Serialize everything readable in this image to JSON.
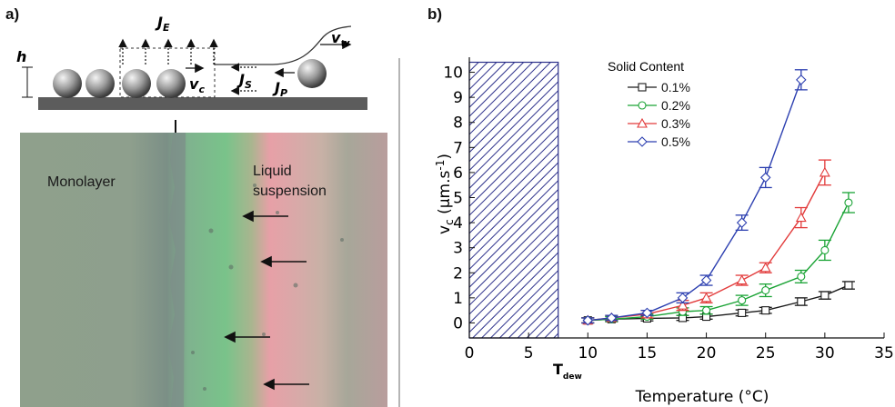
{
  "panel_a": {
    "label": "a)",
    "schematic": {
      "h": "h",
      "J_E": {
        "main": "J",
        "sub": "E"
      },
      "v_w": {
        "main": "v",
        "sub": "w"
      },
      "v_c": {
        "main": "v",
        "sub": "c"
      },
      "J_S": {
        "main": "J",
        "sub": "S"
      },
      "J_P": {
        "main": "J",
        "sub": "P"
      }
    },
    "micrograph": {
      "monolayer": "Monolayer",
      "liquid_line1": "Liquid",
      "liquid_line2": "suspension"
    }
  },
  "panel_b": {
    "label": "b)",
    "chart_data": {
      "type": "line",
      "xlabel": "Temperature (°C)",
      "ylabel_main": "v",
      "ylabel_sub": "c",
      "ylabel_rest": " (µm.s",
      "ylabel_sup": "-1",
      "ylabel_end": ")",
      "xlim": [
        0,
        35
      ],
      "ylim": [
        -0.6,
        10.6
      ],
      "xticks": [
        0,
        5,
        10,
        15,
        20,
        25,
        30,
        35
      ],
      "yticks": [
        0,
        1,
        2,
        3,
        4,
        5,
        6,
        7,
        8,
        9,
        10
      ],
      "hatched_region": {
        "x": [
          0,
          7.5
        ],
        "y_top": 10.4,
        "label_main": "T",
        "label_sub": "dew"
      },
      "legend": {
        "title": "Solid Content",
        "placement": "top-center"
      },
      "series": [
        {
          "name": "0.1%",
          "color": "#1a1a1a",
          "marker": "square",
          "x": [
            10,
            12,
            15,
            18,
            20,
            23,
            25,
            28,
            30,
            32
          ],
          "y": [
            0.1,
            0.15,
            0.18,
            0.2,
            0.25,
            0.4,
            0.5,
            0.85,
            1.1,
            1.5
          ],
          "err": [
            0.1,
            0.1,
            0.1,
            0.1,
            0.1,
            0.12,
            0.12,
            0.15,
            0.15,
            0.15
          ]
        },
        {
          "name": "0.2%",
          "color": "#1aa335",
          "marker": "circle",
          "x": [
            10,
            12,
            15,
            18,
            20,
            23,
            25,
            28,
            30,
            32
          ],
          "y": [
            0.1,
            0.15,
            0.25,
            0.45,
            0.5,
            0.9,
            1.3,
            1.85,
            2.9,
            4.8
          ],
          "err": [
            0.1,
            0.1,
            0.1,
            0.15,
            0.15,
            0.2,
            0.25,
            0.25,
            0.4,
            0.4
          ]
        },
        {
          "name": "0.3%",
          "color": "#e23a3a",
          "marker": "triangle",
          "x": [
            10,
            12,
            15,
            18,
            20,
            23,
            25,
            28,
            30
          ],
          "y": [
            0.1,
            0.2,
            0.35,
            0.7,
            1.0,
            1.7,
            2.2,
            4.2,
            6.0
          ],
          "err": [
            0.1,
            0.1,
            0.15,
            0.2,
            0.2,
            0.2,
            0.2,
            0.4,
            0.5
          ]
        },
        {
          "name": "0.5%",
          "color": "#2c3fb0",
          "marker": "diamond",
          "x": [
            10,
            12,
            15,
            18,
            20,
            23,
            25,
            28
          ],
          "y": [
            0.1,
            0.2,
            0.4,
            1.0,
            1.7,
            4.0,
            5.8,
            9.7
          ],
          "err": [
            0.1,
            0.1,
            0.1,
            0.2,
            0.2,
            0.3,
            0.4,
            0.4
          ]
        }
      ]
    }
  }
}
